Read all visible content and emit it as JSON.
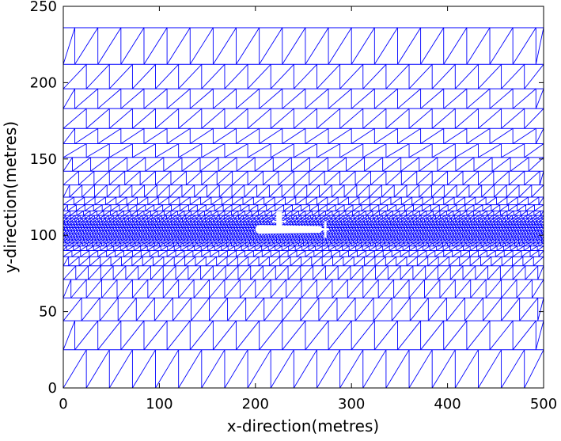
{
  "chart_data": {
    "type": "mesh",
    "title": "",
    "xlabel": "x-direction(metres)",
    "ylabel": "y-direction(metres)",
    "xlim": [
      0,
      500
    ],
    "ylim": [
      0,
      250
    ],
    "x_ticks": [
      0,
      100,
      200,
      300,
      400,
      500
    ],
    "y_ticks": [
      0,
      50,
      100,
      150,
      200,
      250
    ],
    "grid": false,
    "legend": "none",
    "mesh": {
      "x_extent": [
        0,
        500
      ],
      "y_extent": [
        0,
        236
      ],
      "row_boundaries_y": [
        0,
        25,
        44,
        59,
        71,
        80,
        86,
        90,
        93,
        95,
        97,
        99,
        101,
        103,
        105,
        107,
        109,
        111,
        113,
        116,
        120,
        125,
        133,
        142,
        151,
        160,
        170,
        183,
        196,
        212,
        236
      ],
      "column_spacing_x": [
        24,
        24,
        19,
        16,
        13,
        11,
        9,
        7,
        5,
        4,
        3,
        3,
        3,
        3,
        3,
        3,
        4,
        5,
        7,
        9,
        11,
        13,
        16,
        19,
        24,
        24,
        24,
        24,
        24,
        24
      ],
      "element_shape": "triangle"
    },
    "object": {
      "name": "submarine",
      "x_range": [
        200,
        275
      ],
      "y_range": [
        101,
        116
      ]
    },
    "colors": {
      "mesh": "#0000ff",
      "object_fill": "#ffffff",
      "axes": "#000000",
      "background": "#ffffff"
    }
  }
}
